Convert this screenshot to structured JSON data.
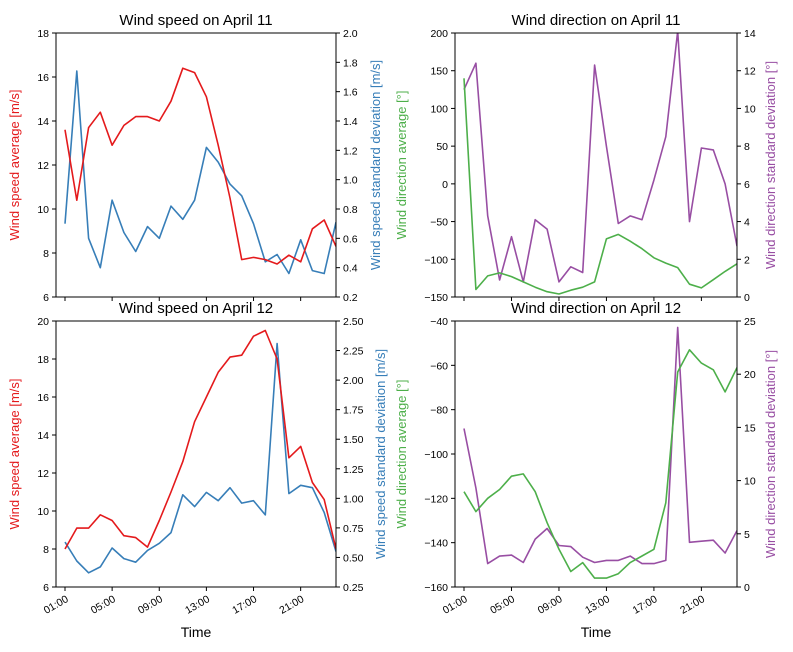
{
  "colors": {
    "speed_avg": "#e41a1c",
    "speed_std": "#377eb8",
    "dir_avg": "#4daf4a",
    "dir_std": "#984ea3"
  },
  "x_tick_labels": [
    "01:00",
    "05:00",
    "09:00",
    "13:00",
    "17:00",
    "21:00"
  ],
  "chart_data": [
    {
      "type": "line",
      "title": "Wind speed on April 11",
      "xlabel": "",
      "ylabel": "Wind speed average [m/s]",
      "ylabel_right": "Wind speed standard deviation [m/s]",
      "x": [
        0,
        1,
        2,
        3,
        4,
        5,
        6,
        7,
        8,
        9,
        10,
        11,
        12,
        13,
        14,
        15,
        16,
        17,
        18,
        19,
        20,
        21,
        22,
        23
      ],
      "ylim": [
        6,
        18
      ],
      "ylim_right": [
        0.2,
        2.0
      ],
      "yticks": [
        "6",
        "8",
        "10",
        "12",
        "14",
        "16",
        "18"
      ],
      "yticks_right": [
        "0.2",
        "0.4",
        "0.6",
        "0.8",
        "1.0",
        "1.2",
        "1.4",
        "1.6",
        "1.8",
        "2.0"
      ],
      "series": [
        {
          "name": "Wind speed average",
          "axis": "left",
          "color": "#e41a1c",
          "values": [
            13.6,
            10.4,
            13.7,
            14.4,
            12.9,
            13.8,
            14.2,
            14.2,
            14.0,
            14.9,
            16.4,
            16.2,
            15.1,
            12.9,
            10.5,
            7.7,
            7.8,
            7.7,
            7.5,
            7.9,
            7.6,
            9.1,
            9.5,
            8.3
          ]
        },
        {
          "name": "Wind speed standard deviation",
          "axis": "right",
          "color": "#377eb8",
          "values": [
            0.7,
            1.74,
            0.6,
            0.4,
            0.86,
            0.64,
            0.51,
            0.68,
            0.6,
            0.82,
            0.73,
            0.86,
            1.22,
            1.12,
            0.97,
            0.89,
            0.7,
            0.44,
            0.49,
            0.36,
            0.59,
            0.38,
            0.36,
            0.71
          ]
        }
      ]
    },
    {
      "type": "line",
      "title": "Wind direction on April 11",
      "xlabel": "",
      "ylabel": "Wind direction average [°]",
      "ylabel_right": "Wind direction standard deviation [°]",
      "x": [
        0,
        1,
        2,
        3,
        4,
        5,
        6,
        7,
        8,
        9,
        10,
        11,
        12,
        13,
        14,
        15,
        16,
        17,
        18,
        19,
        20,
        21,
        22,
        23
      ],
      "ylim": [
        -150,
        200
      ],
      "ylim_right": [
        0,
        14
      ],
      "yticks": [
        "−150",
        "−100",
        "−50",
        "0",
        "50",
        "100",
        "150",
        "200"
      ],
      "yticks_right": [
        "0",
        "2",
        "4",
        "6",
        "8",
        "10",
        "12",
        "14"
      ],
      "series": [
        {
          "name": "Wind direction average",
          "axis": "left",
          "color": "#4daf4a",
          "values": [
            140,
            -140,
            -122,
            -118,
            -123,
            -130,
            -137,
            -143,
            -146,
            -141,
            -137,
            -130,
            -73,
            -67,
            -76,
            -86,
            -98,
            -105,
            -111,
            -133,
            -138,
            -127,
            -116,
            -106
          ]
        },
        {
          "name": "Wind direction standard deviation",
          "axis": "right",
          "color": "#984ea3",
          "values": [
            11,
            12.4,
            4.3,
            0.9,
            3.2,
            0.8,
            4.1,
            3.6,
            0.8,
            1.6,
            1.3,
            12.3,
            8,
            3.9,
            4.3,
            4.1,
            6.2,
            8.5,
            14.1,
            4,
            7.9,
            7.8,
            6,
            2.7
          ]
        }
      ]
    },
    {
      "type": "line",
      "title": "Wind speed on April 12",
      "xlabel": "Time",
      "ylabel": "Wind speed average [m/s]",
      "ylabel_right": "Wind speed standard deviation [m/s]",
      "x": [
        0,
        1,
        2,
        3,
        4,
        5,
        6,
        7,
        8,
        9,
        10,
        11,
        12,
        13,
        14,
        15,
        16,
        17,
        18,
        19,
        20,
        21,
        22,
        23
      ],
      "ylim": [
        6,
        20
      ],
      "ylim_right": [
        0.25,
        2.5
      ],
      "yticks": [
        "6",
        "8",
        "10",
        "12",
        "14",
        "16",
        "18",
        "20"
      ],
      "yticks_right": [
        "0.25",
        "0.50",
        "0.75",
        "1.00",
        "1.25",
        "1.50",
        "1.75",
        "2.00",
        "2.25",
        "2.50"
      ],
      "series": [
        {
          "name": "Wind speed average",
          "axis": "left",
          "color": "#e41a1c",
          "values": [
            8.0,
            9.1,
            9.1,
            9.8,
            9.5,
            8.7,
            8.6,
            8.1,
            9.5,
            11.0,
            12.6,
            14.7,
            16.0,
            17.3,
            18.1,
            18.2,
            19.2,
            19.5,
            18.0,
            12.8,
            13.4,
            11.5,
            10.6,
            8.0
          ]
        },
        {
          "name": "Wind speed standard deviation",
          "axis": "right",
          "color": "#377eb8",
          "values": [
            0.63,
            0.47,
            0.37,
            0.42,
            0.58,
            0.49,
            0.46,
            0.56,
            0.62,
            0.71,
            1.03,
            0.93,
            1.05,
            0.98,
            1.09,
            0.96,
            0.98,
            0.86,
            2.31,
            1.04,
            1.11,
            1.09,
            0.88,
            0.55
          ]
        }
      ]
    },
    {
      "type": "line",
      "title": "Wind direction on April 12",
      "xlabel": "Time",
      "ylabel": "Wind direction average [°]",
      "ylabel_right": "Wind direction standard deviation [°]",
      "x": [
        0,
        1,
        2,
        3,
        4,
        5,
        6,
        7,
        8,
        9,
        10,
        11,
        12,
        13,
        14,
        15,
        16,
        17,
        18,
        19,
        20,
        21,
        22,
        23
      ],
      "ylim": [
        -160,
        -40
      ],
      "ylim_right": [
        0,
        25
      ],
      "yticks": [
        "−160",
        "−140",
        "−120",
        "−100",
        "−80",
        "−60",
        "−40"
      ],
      "yticks_right": [
        "0",
        "5",
        "10",
        "15",
        "20",
        "25"
      ],
      "series": [
        {
          "name": "Wind direction average",
          "axis": "left",
          "color": "#4daf4a",
          "values": [
            -117,
            -126,
            -120,
            -116,
            -110,
            -109,
            -117,
            -131,
            -143,
            -153,
            -149,
            -156,
            -156,
            -154,
            -149,
            -146,
            -143,
            -122,
            -63,
            -53,
            -59,
            -62,
            -72,
            -61
          ]
        },
        {
          "name": "Wind direction standard deviation",
          "axis": "right",
          "color": "#984ea3",
          "values": [
            14.9,
            9.3,
            2.2,
            2.9,
            3.0,
            2.3,
            4.5,
            5.5,
            3.9,
            3.8,
            2.8,
            2.3,
            2.5,
            2.5,
            2.9,
            2.2,
            2.2,
            2.5,
            24.4,
            4.2,
            4.3,
            4.4,
            3.2,
            5.3
          ]
        }
      ]
    }
  ]
}
